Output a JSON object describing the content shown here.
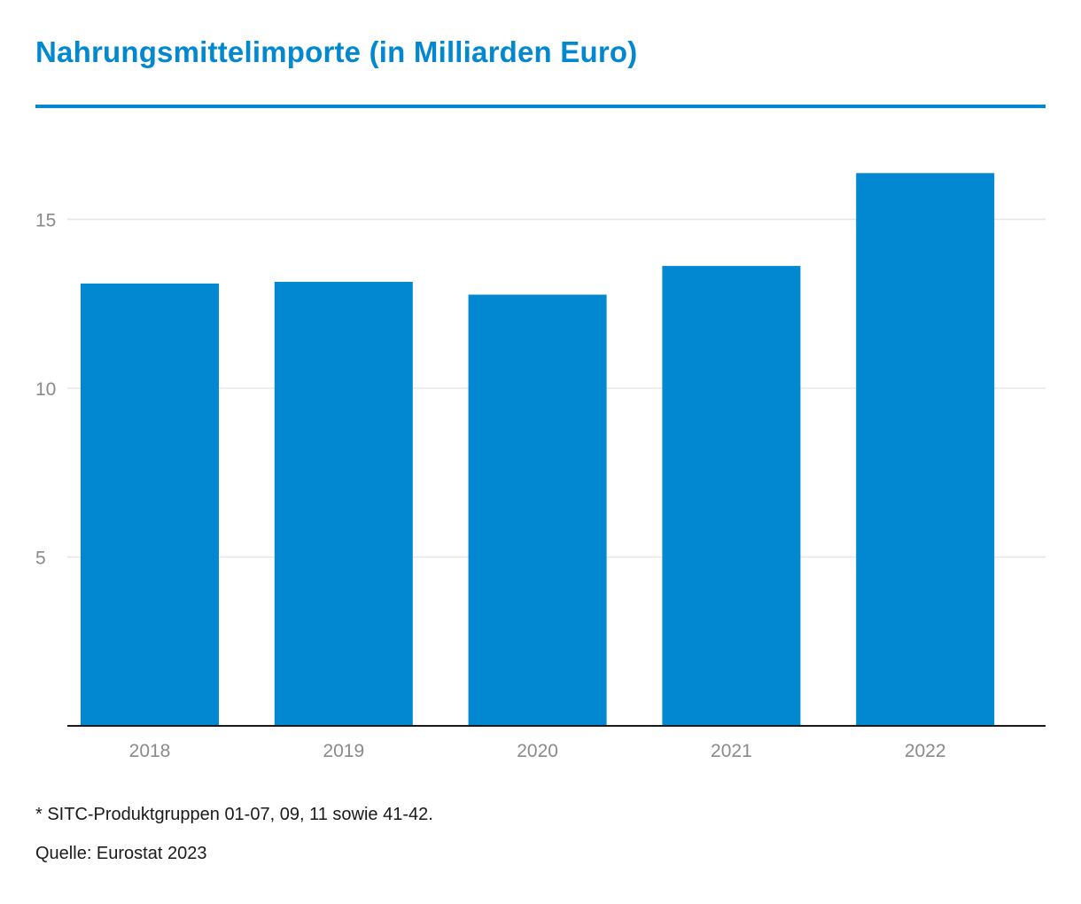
{
  "chart_data": {
    "type": "bar",
    "title": "Nahrungsmittelimporte (in Milliarden Euro)",
    "categories": [
      "2018",
      "2019",
      "2020",
      "2021",
      "2022"
    ],
    "values": [
      13.1,
      13.15,
      12.77,
      13.62,
      16.37
    ],
    "xlabel": "",
    "ylabel": "",
    "ylim": [
      0,
      17.5
    ],
    "yticks": [
      5,
      10,
      15
    ],
    "grid": true,
    "legend": "none",
    "bar_color": "#0288d1",
    "title_color": "#0288d1",
    "grid_color": "#e6e6e6",
    "tick_label_color": "#8a8a8a"
  },
  "footnotes": {
    "note": "* SITC-Produktgruppen 01-07, 09, 11 sowie 41-42.",
    "source": "Quelle: Eurostat 2023"
  }
}
